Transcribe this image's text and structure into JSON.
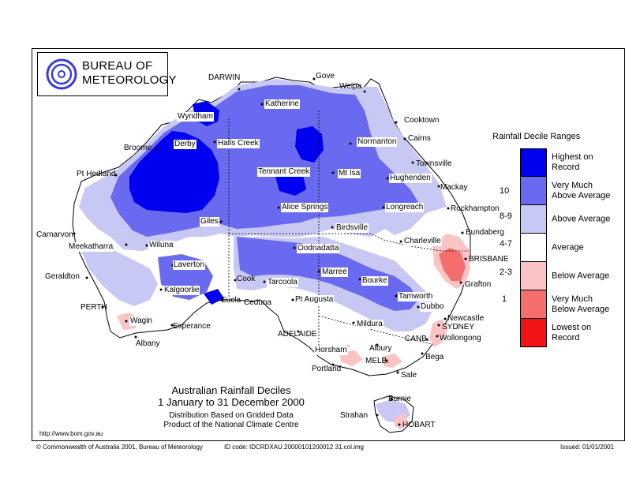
{
  "logo": {
    "name_line1": "BUREAU OF",
    "name_line2": "METEOROLOGY",
    "swirl_color": "#3a3adf",
    "swirl_icon": "bom-swirl-icon"
  },
  "map": {
    "title_line1": "Australian Rainfall Deciles",
    "title_line2": "1 January to 31 December 2000",
    "subtitle_line1": "Distribution Based on Gridded Data",
    "subtitle_line2": "Product of the National Climate Centre"
  },
  "places": [
    {
      "id": "darwin",
      "label": "DARWIN",
      "boxed": false
    },
    {
      "id": "gove",
      "label": "Gove",
      "boxed": false
    },
    {
      "id": "weipa",
      "label": "Weipa",
      "boxed": false
    },
    {
      "id": "katherine",
      "label": "Katherine",
      "boxed": true
    },
    {
      "id": "wyndham",
      "label": "Wyndham",
      "boxed": true
    },
    {
      "id": "cooktown",
      "label": "Cooktown",
      "boxed": false
    },
    {
      "id": "cairns",
      "label": "Cairns",
      "boxed": false
    },
    {
      "id": "broome",
      "label": "Broome",
      "boxed": false
    },
    {
      "id": "derby",
      "label": "Derby",
      "boxed": true
    },
    {
      "id": "halls-creek",
      "label": "Halls Creek",
      "boxed": true
    },
    {
      "id": "normanton",
      "label": "Normanton",
      "boxed": true
    },
    {
      "id": "townsville",
      "label": "Townsville",
      "boxed": false
    },
    {
      "id": "pt-hedland",
      "label": "Pt Hedland",
      "boxed": false
    },
    {
      "id": "tennant-creek",
      "label": "Tennant Creek",
      "boxed": true
    },
    {
      "id": "mt-isa",
      "label": "Mt Isa",
      "boxed": true
    },
    {
      "id": "hughenden",
      "label": "Hughenden",
      "boxed": true
    },
    {
      "id": "mackay",
      "label": "Mackay",
      "boxed": false
    },
    {
      "id": "alice-springs",
      "label": "Alice Springs",
      "boxed": true
    },
    {
      "id": "longreach",
      "label": "Longreach",
      "boxed": true
    },
    {
      "id": "rockhampton",
      "label": "Rockhampton",
      "boxed": false
    },
    {
      "id": "giles",
      "label": "Giles",
      "boxed": true
    },
    {
      "id": "birdsville",
      "label": "Birdsville",
      "boxed": true
    },
    {
      "id": "bundaberg",
      "label": "Bundaberg",
      "boxed": false
    },
    {
      "id": "carnarvon",
      "label": "Carnarvon",
      "boxed": false
    },
    {
      "id": "meekatharra",
      "label": "Meekatharra",
      "boxed": true
    },
    {
      "id": "wiluna",
      "label": "Wiluna",
      "boxed": true
    },
    {
      "id": "oodnadatta",
      "label": "Oodnadatta",
      "boxed": true
    },
    {
      "id": "charleville",
      "label": "Charleville",
      "boxed": true
    },
    {
      "id": "laverton",
      "label": "Laverton",
      "boxed": true
    },
    {
      "id": "brisbane",
      "label": "BRISBANE",
      "boxed": false
    },
    {
      "id": "geraldton",
      "label": "Geraldton",
      "boxed": false
    },
    {
      "id": "marree",
      "label": "Marree",
      "boxed": true
    },
    {
      "id": "bourke",
      "label": "Bourke",
      "boxed": true
    },
    {
      "id": "cook",
      "label": "Cook",
      "boxed": false
    },
    {
      "id": "tarcoola",
      "label": "Tarcoola",
      "boxed": true
    },
    {
      "id": "grafton",
      "label": "Grafton",
      "boxed": false
    },
    {
      "id": "kalgoorlie",
      "label": "Kalgoorlie",
      "boxed": true
    },
    {
      "id": "eucla",
      "label": "Eucla",
      "boxed": false
    },
    {
      "id": "ceduna",
      "label": "Ceduna",
      "boxed": false
    },
    {
      "id": "pt-augusta",
      "label": "Pt Augusta",
      "boxed": true
    },
    {
      "id": "tamworth",
      "label": "Tamworth",
      "boxed": true
    },
    {
      "id": "dubbo",
      "label": "Dubbo",
      "boxed": true
    },
    {
      "id": "perth",
      "label": "PERTH",
      "boxed": false
    },
    {
      "id": "newcastle",
      "label": "Newcastle",
      "boxed": false
    },
    {
      "id": "sydney",
      "label": "SYDNEY",
      "boxed": false
    },
    {
      "id": "wagin",
      "label": "Wagin",
      "boxed": true
    },
    {
      "id": "esperance",
      "label": "Esperance",
      "boxed": false
    },
    {
      "id": "mildura",
      "label": "Mildura",
      "boxed": true
    },
    {
      "id": "wollongong",
      "label": "Wollongong",
      "boxed": false
    },
    {
      "id": "albany",
      "label": "Albany",
      "boxed": false
    },
    {
      "id": "adelaide",
      "label": "ADELAIDE",
      "boxed": false
    },
    {
      "id": "canberra",
      "label": "CANB.",
      "boxed": false
    },
    {
      "id": "horsham",
      "label": "Horsham",
      "boxed": true
    },
    {
      "id": "albury",
      "label": "Albury",
      "boxed": false
    },
    {
      "id": "bega",
      "label": "Bega",
      "boxed": false
    },
    {
      "id": "melbourne",
      "label": "MELB.",
      "boxed": false
    },
    {
      "id": "portland",
      "label": "Portland",
      "boxed": false
    },
    {
      "id": "sale",
      "label": "Sale",
      "boxed": false
    },
    {
      "id": "burnie",
      "label": "Burnie",
      "boxed": false
    },
    {
      "id": "strahan",
      "label": "Strahan",
      "boxed": false
    },
    {
      "id": "hobart",
      "label": "HOBART",
      "boxed": false
    }
  ],
  "legend": {
    "title": "Rainfall Decile Ranges",
    "items": [
      {
        "label_line1": "Highest on",
        "label_line2": "Record",
        "color": "#0000f0",
        "num": ""
      },
      {
        "label_line1": "Very Much",
        "label_line2": "Above Average",
        "color": "#6a6af0",
        "num": "10"
      },
      {
        "label_line1": "Above Average",
        "label_line2": "",
        "color": "#c8c8f4",
        "num": "8-9"
      },
      {
        "label_line1": "Average",
        "label_line2": "",
        "color": "#ffffff",
        "num": "4-7"
      },
      {
        "label_line1": "Below Average",
        "label_line2": "",
        "color": "#fac4c4",
        "num": "2-3"
      },
      {
        "label_line1": "Very Much",
        "label_line2": "Below Average",
        "color": "#f56e6e",
        "num": "1"
      },
      {
        "label_line1": "Lowest on",
        "label_line2": "Record",
        "color": "#f01414",
        "num": ""
      }
    ]
  },
  "footer": {
    "url": "http://www.bom.gov.au",
    "copyright": "© Commonwealth of Australia 2001, Bureau of Meteorology",
    "id_code": "ID code: IDCRDXAU.20000101200012 31.col.img",
    "issued": "Issued: 01/01/2001"
  }
}
